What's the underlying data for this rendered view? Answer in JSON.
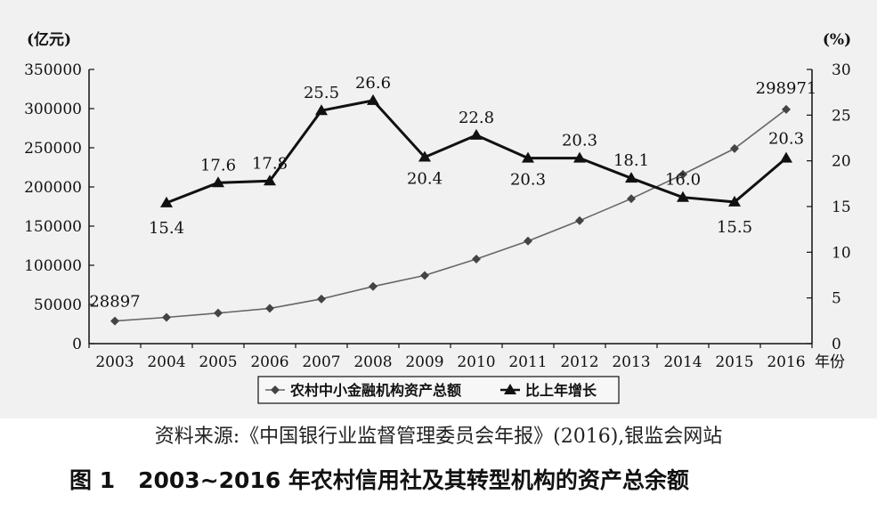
{
  "chart_data": {
    "type": "line",
    "categories": [
      "2003",
      "2004",
      "2005",
      "2006",
      "2007",
      "2008",
      "2009",
      "2010",
      "2011",
      "2012",
      "2013",
      "2014",
      "2015",
      "2016"
    ],
    "x_unit": "年份",
    "y_left": {
      "unit": "(亿元)",
      "ticks": [
        "0",
        "50000",
        "100000",
        "150000",
        "200000",
        "250000",
        "300000",
        "350000"
      ],
      "ylim": [
        0,
        350000
      ]
    },
    "y_right": {
      "unit": "(%)",
      "ticks": [
        "0",
        "5",
        "10",
        "15",
        "20",
        "25",
        "30"
      ],
      "ylim": [
        0,
        30
      ]
    },
    "series": [
      {
        "name": "农村中小金融机构资产总额",
        "axis": "left",
        "marker": "diamond",
        "color": "#666666",
        "values": [
          28897,
          33500,
          39000,
          45000,
          57000,
          73000,
          87000,
          108000,
          131000,
          157000,
          185000,
          216000,
          249000,
          298971
        ],
        "labels": {
          "0": "28897",
          "13": "298971"
        }
      },
      {
        "name": "比上年增长",
        "axis": "right",
        "marker": "triangle",
        "color": "#111111",
        "values": [
          null,
          15.4,
          17.6,
          17.8,
          25.5,
          26.6,
          20.4,
          22.8,
          20.3,
          20.3,
          18.1,
          16.0,
          15.5,
          20.3
        ],
        "labels": {
          "1": "15.4",
          "2": "17.6",
          "3": "17.8",
          "4": "25.5",
          "5": "26.6",
          "6": "20.4",
          "7": "22.8",
          "8": "20.3",
          "9": "20.3",
          "10": "18.1",
          "11": "16.0",
          "12": "15.5",
          "13": "20.3"
        }
      }
    ],
    "grid": false,
    "legend_position": "bottom-center"
  },
  "source": "资料来源:《中国银行业监督管理委员会年报》(2016),银监会网站",
  "caption": {
    "number": "图 1",
    "title": "2003~2016 年农村信用社及其转型机构的资产总余额"
  }
}
